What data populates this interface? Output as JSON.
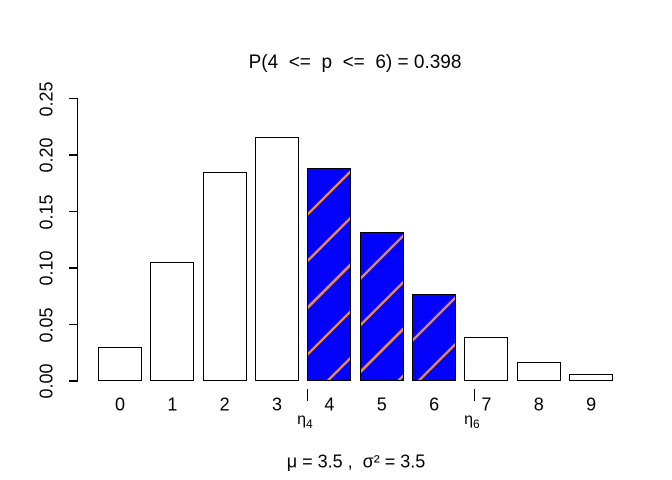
{
  "figure": {
    "title": "P(4  <=  p  <=  6) = 0.398",
    "subtitle": "μ = 3.5 ,  σ² = 3.5"
  },
  "chart_data": {
    "type": "bar",
    "title": "P(4  <=  p  <=  6) = 0.398",
    "subtitle": "μ = 3.5 ,  σ² = 3.5",
    "xlabel": "",
    "ylabel": "",
    "categories": [
      "0",
      "1",
      "2",
      "3",
      "4",
      "5",
      "6",
      "7",
      "8",
      "9"
    ],
    "values": [
      0.0302,
      0.1057,
      0.185,
      0.2158,
      0.1888,
      0.1322,
      0.0771,
      0.0385,
      0.0169,
      0.0066
    ],
    "highlighted_categories": [
      "4",
      "5",
      "6"
    ],
    "highlight_probability_sum": 0.398,
    "distribution": {
      "mu": 3.5,
      "sigma_squared": 3.5
    },
    "ylim": [
      0,
      0.25
    ],
    "y_ticks": [
      "0.00",
      "0.05",
      "0.10",
      "0.15",
      "0.20",
      "0.25"
    ],
    "y_tick_values": [
      0,
      0.05,
      0.1,
      0.15,
      0.2,
      0.25
    ],
    "grid": false,
    "legend": false,
    "colors": {
      "bar_fill_default": "#ffffff",
      "bar_fill_highlight": "#0202fa",
      "hatch_line": "#e8884c",
      "bar_border": "#000000",
      "axis": "#000000"
    },
    "hatch": "diagonal-forward",
    "annotations": [
      {
        "base": "η",
        "sub": "4",
        "x": 3.57
      },
      {
        "base": "η",
        "sub": "6",
        "x": 6.76
      }
    ]
  }
}
